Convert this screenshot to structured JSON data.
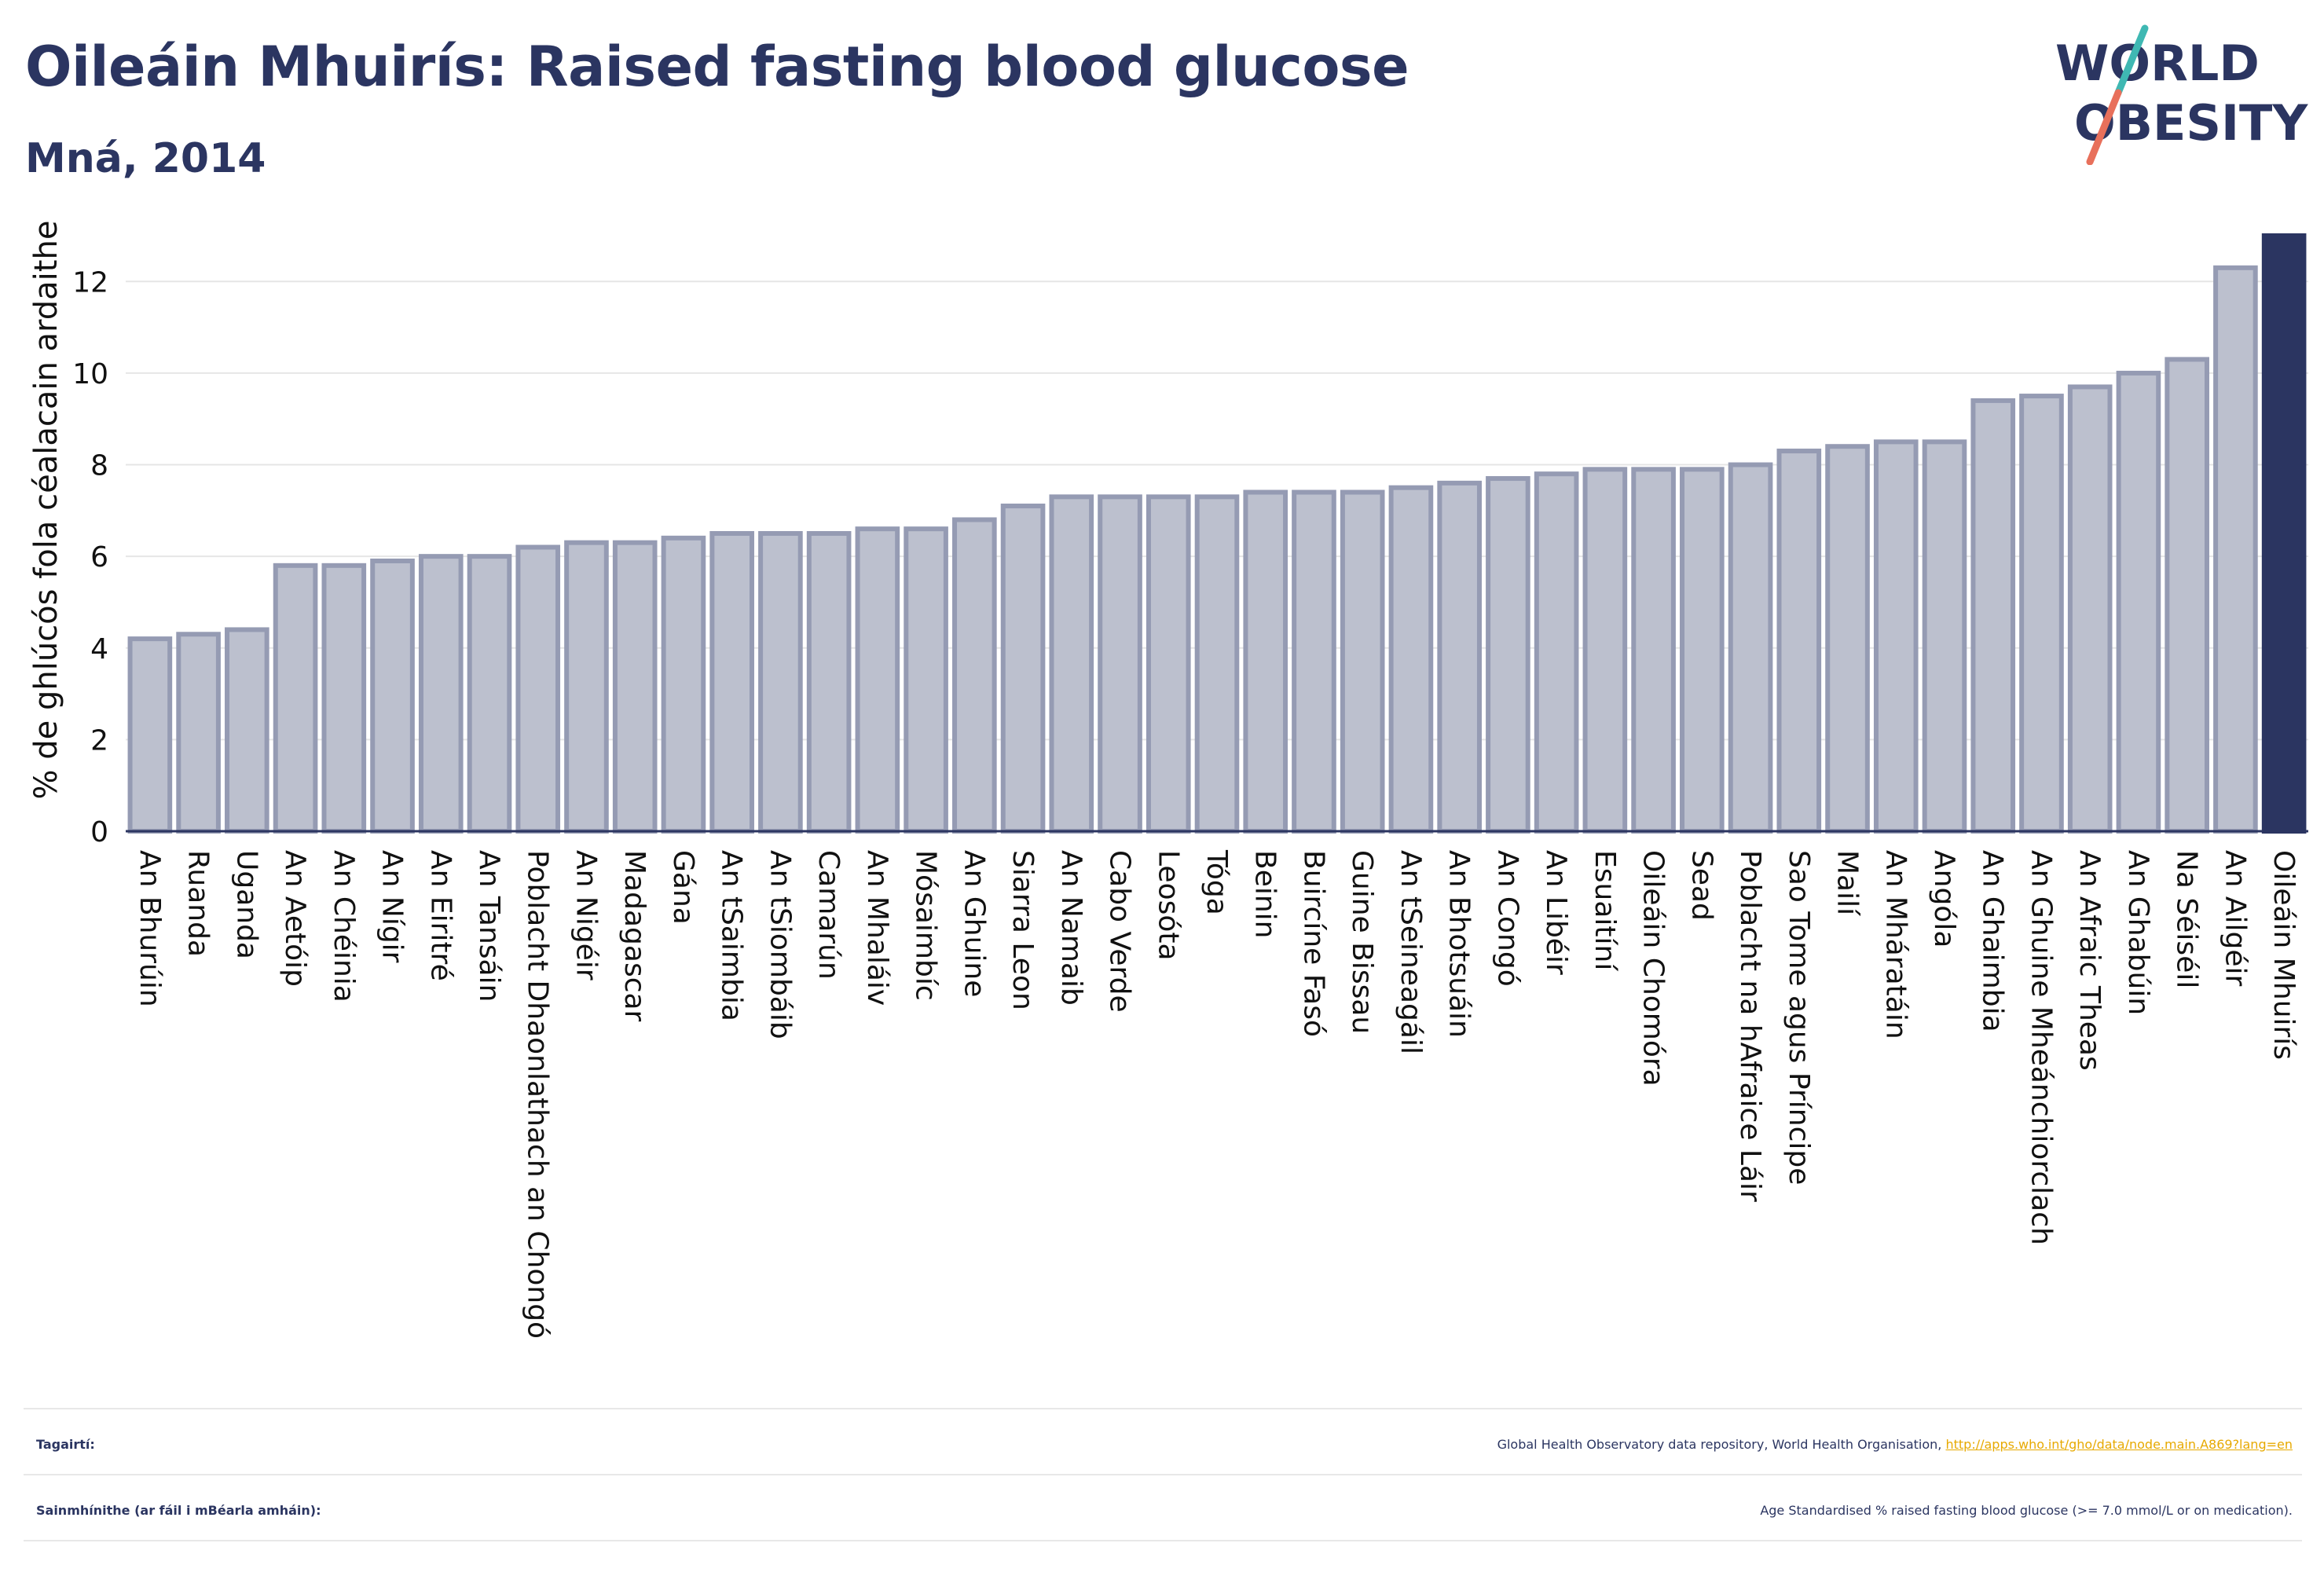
{
  "header": {
    "title": "Oileáin Mhuirís: Raised fasting blood glucose",
    "subtitle": "Mná, 2014"
  },
  "logo": {
    "line1": "WORLD",
    "line2": "OBESITY"
  },
  "colors": {
    "title": "#2b3561",
    "bar_fill": "#bcc0ce",
    "bar_stroke": "#959bb3",
    "highlight": "#2b3561",
    "grid": "#e6e6e6",
    "link": "#e7a900",
    "logo_teal": "#3fb8b3",
    "logo_coral": "#e8705b"
  },
  "chart_data": {
    "type": "bar",
    "ylabel": "% de ghlúcós fola céalacain ardaithe",
    "ylim": [
      0,
      13
    ],
    "yticks": [
      0,
      2,
      4,
      6,
      8,
      10,
      12
    ],
    "grid": true,
    "highlight_category": "Oileáin Mhuirís",
    "categories": [
      "An Bhurúin",
      "Ruanda",
      "Uganda",
      "An Aetóip",
      "An Chéinia",
      "An Nígir",
      "An Eiritré",
      "An Tansáin",
      "Poblacht Dhaonlathach an Chongó",
      "An Nigéir",
      "Madagascar",
      "Gána",
      "An tSaimbia",
      "An tSiombáib",
      "Camarún",
      "An Mhaláiv",
      "Mósaimbíc",
      "An Ghuine",
      "Siarra Leon",
      "An Namaib",
      "Cabo Verde",
      "Leosóta",
      "Tóga",
      "Beinin",
      "Buircíne Fasó",
      "Guine Bissau",
      "An tSeineagáil",
      "An Bhotsuáin",
      "An Congó",
      "An Libéir",
      "Esuaitíní",
      "Oileáin Chomóra",
      "Sead",
      "Poblacht na hAfraice Láir",
      "Sao Tome agus Príncipe",
      "Mailí",
      "An Mháratáin",
      "Angóla",
      "An Ghaimbia",
      "An Ghuine Mheánchiorclach",
      "An Afraic Theas",
      "An Ghabúin",
      "Na Séiséil",
      "An Ailgéir",
      "Oileáin Mhuirís"
    ],
    "values": [
      4.2,
      4.3,
      4.4,
      5.8,
      5.8,
      5.9,
      6.0,
      6.0,
      6.2,
      6.3,
      6.3,
      6.4,
      6.5,
      6.5,
      6.5,
      6.6,
      6.6,
      6.8,
      7.1,
      7.3,
      7.3,
      7.3,
      7.3,
      7.4,
      7.4,
      7.4,
      7.5,
      7.6,
      7.7,
      7.8,
      7.9,
      7.9,
      7.9,
      8.0,
      8.3,
      8.4,
      8.5,
      8.5,
      9.4,
      9.5,
      9.7,
      10.0,
      10.3,
      12.3,
      13.0
    ]
  },
  "footer": {
    "references_label": "Tagairtí:",
    "references_text": "Global Health Observatory data repository, World Health Organisation, ",
    "references_link": "http://apps.who.int/gho/data/node.main.A869?lang=en",
    "definitions_label": "Sainmhínithe (ar fáil i mBéarla amháin):",
    "definitions_text": "Age Standardised % raised fasting blood glucose (>= 7.0 mmol/L or on medication)."
  }
}
